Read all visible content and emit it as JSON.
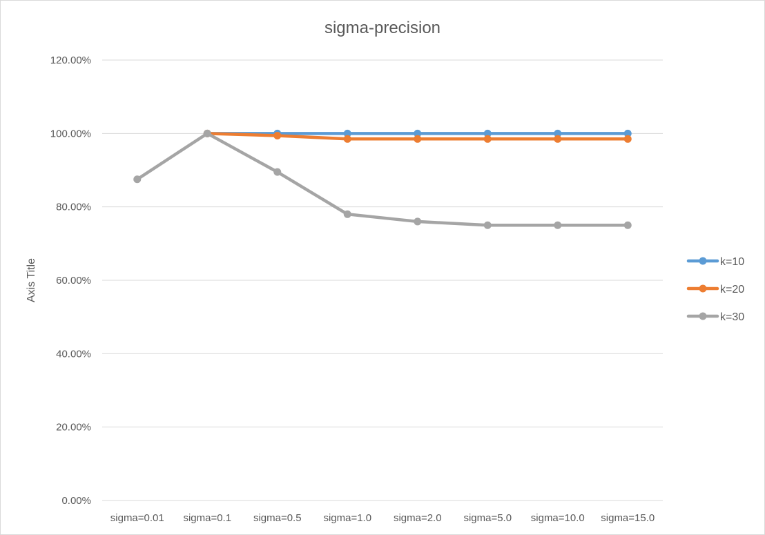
{
  "chart_data": {
    "type": "line",
    "title": "sigma-precision",
    "xlabel": "",
    "ylabel": "Axis Title",
    "categories": [
      "sigma=0.01",
      "sigma=0.1",
      "sigma=0.5",
      "sigma=1.0",
      "sigma=2.0",
      "sigma=5.0",
      "sigma=10.0",
      "sigma=15.0"
    ],
    "ylim": [
      0,
      1.2
    ],
    "yticks": [
      0,
      0.2,
      0.4,
      0.6,
      0.8,
      1.0,
      1.2
    ],
    "ytick_labels": [
      "0.00%",
      "20.00%",
      "40.00%",
      "60.00%",
      "80.00%",
      "100.00%",
      "120.00%"
    ],
    "grid": true,
    "legend_position": "right",
    "series": [
      {
        "name": "k=10",
        "color": "#5b9bd5",
        "values": [
          null,
          1.0,
          1.0,
          1.0,
          1.0,
          1.0,
          1.0,
          1.0
        ]
      },
      {
        "name": "k=20",
        "color": "#ed7d31",
        "values": [
          null,
          1.0,
          0.994,
          0.985,
          0.985,
          0.985,
          0.985,
          0.985
        ]
      },
      {
        "name": "k=30",
        "color": "#a5a5a5",
        "values": [
          0.875,
          1.0,
          0.895,
          0.78,
          0.76,
          0.75,
          0.75,
          0.75
        ]
      }
    ]
  }
}
